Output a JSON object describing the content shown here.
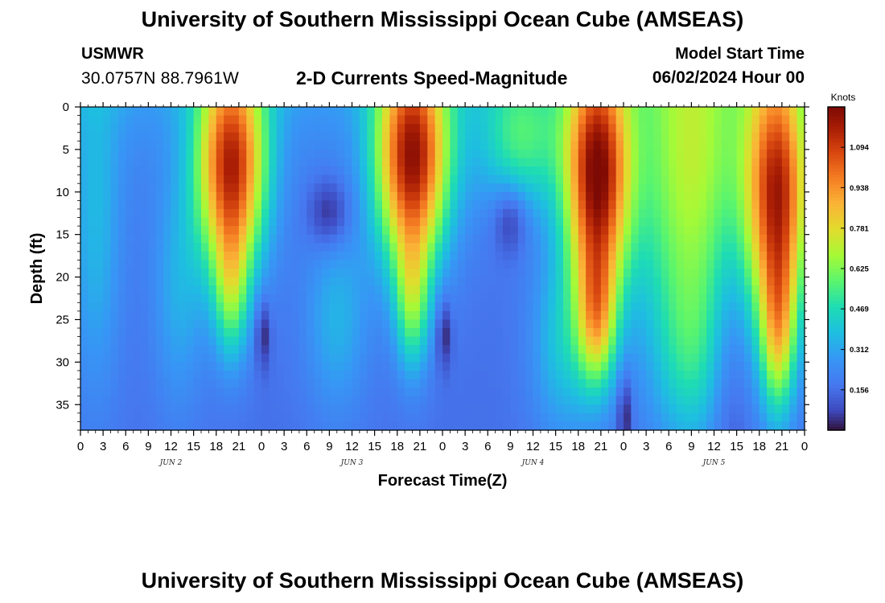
{
  "header": {
    "title": "University of Southern Mississippi Ocean Cube (AMSEAS)",
    "station_id": "USMWR",
    "station_coords": "30.0757N  88.7961W",
    "chart_subtitle": "2-D Currents Speed-Magnitude",
    "model_start_label": "Model Start Time",
    "model_start_value": "06/02/2024 Hour 00"
  },
  "footer": {
    "title": "University of Southern Mississippi Ocean Cube (AMSEAS)"
  },
  "chart_data": {
    "type": "heatmap",
    "title": "2-D Currents Speed-Magnitude",
    "xlabel": "Forecast Time(Z)",
    "ylabel": "Depth (ft)",
    "xlim": [
      0,
      96
    ],
    "ylim": [
      0,
      38
    ],
    "y_inverted": true,
    "x_tick_values": [
      0,
      3,
      6,
      9,
      12,
      15,
      18,
      21,
      24,
      27,
      30,
      33,
      36,
      39,
      42,
      45,
      48,
      51,
      54,
      57,
      60,
      63,
      66,
      69,
      72,
      75,
      78,
      81,
      84,
      87,
      90,
      93,
      96
    ],
    "x_tick_labels": [
      "0",
      "3",
      "6",
      "9",
      "12",
      "15",
      "18",
      "21",
      "0",
      "3",
      "6",
      "9",
      "12",
      "15",
      "18",
      "21",
      "0",
      "3",
      "6",
      "9",
      "12",
      "15",
      "18",
      "21",
      "0",
      "3",
      "6",
      "9",
      "12",
      "15",
      "18",
      "21",
      "0"
    ],
    "y_ticks": [
      0,
      5,
      10,
      15,
      20,
      25,
      30,
      35
    ],
    "day_labels": [
      {
        "label": "JUN 2",
        "hour": 12
      },
      {
        "label": "JUN 3",
        "hour": 36
      },
      {
        "label": "JUN 4",
        "hour": 60
      },
      {
        "label": "JUN 5",
        "hour": 84
      }
    ],
    "colorbar": {
      "unit": "Knots",
      "range": [
        0,
        1.25
      ],
      "tick_values": [
        0.156,
        0.312,
        0.469,
        0.625,
        0.781,
        0.938,
        1.094
      ],
      "tick_labels": [
        "0.156",
        "0.312",
        "0.469",
        "0.625",
        "0.781",
        "0.938",
        "1.094"
      ]
    },
    "grid": false,
    "speed_cores": [
      {
        "hour": 20,
        "depth": 7,
        "peak_knots": 1.15
      },
      {
        "hour": 44,
        "depth": 6,
        "peak_knots": 1.2
      },
      {
        "hour": 68,
        "depth": 7,
        "peak_knots": 1.2
      },
      {
        "hour": 92,
        "depth": 9,
        "peak_knots": 1.12
      },
      {
        "hour": 81,
        "depth": 6,
        "peak_knots": 0.68
      },
      {
        "hour": 58,
        "depth": 3,
        "peak_knots": 0.5
      }
    ],
    "speed_minima": [
      {
        "hour": 24.2,
        "depth": 26.5,
        "knots": 0.0
      },
      {
        "hour": 48.2,
        "depth": 26.5,
        "knots": 0.0
      },
      {
        "hour": 72.2,
        "depth": 36,
        "knots": 0.0
      }
    ]
  }
}
